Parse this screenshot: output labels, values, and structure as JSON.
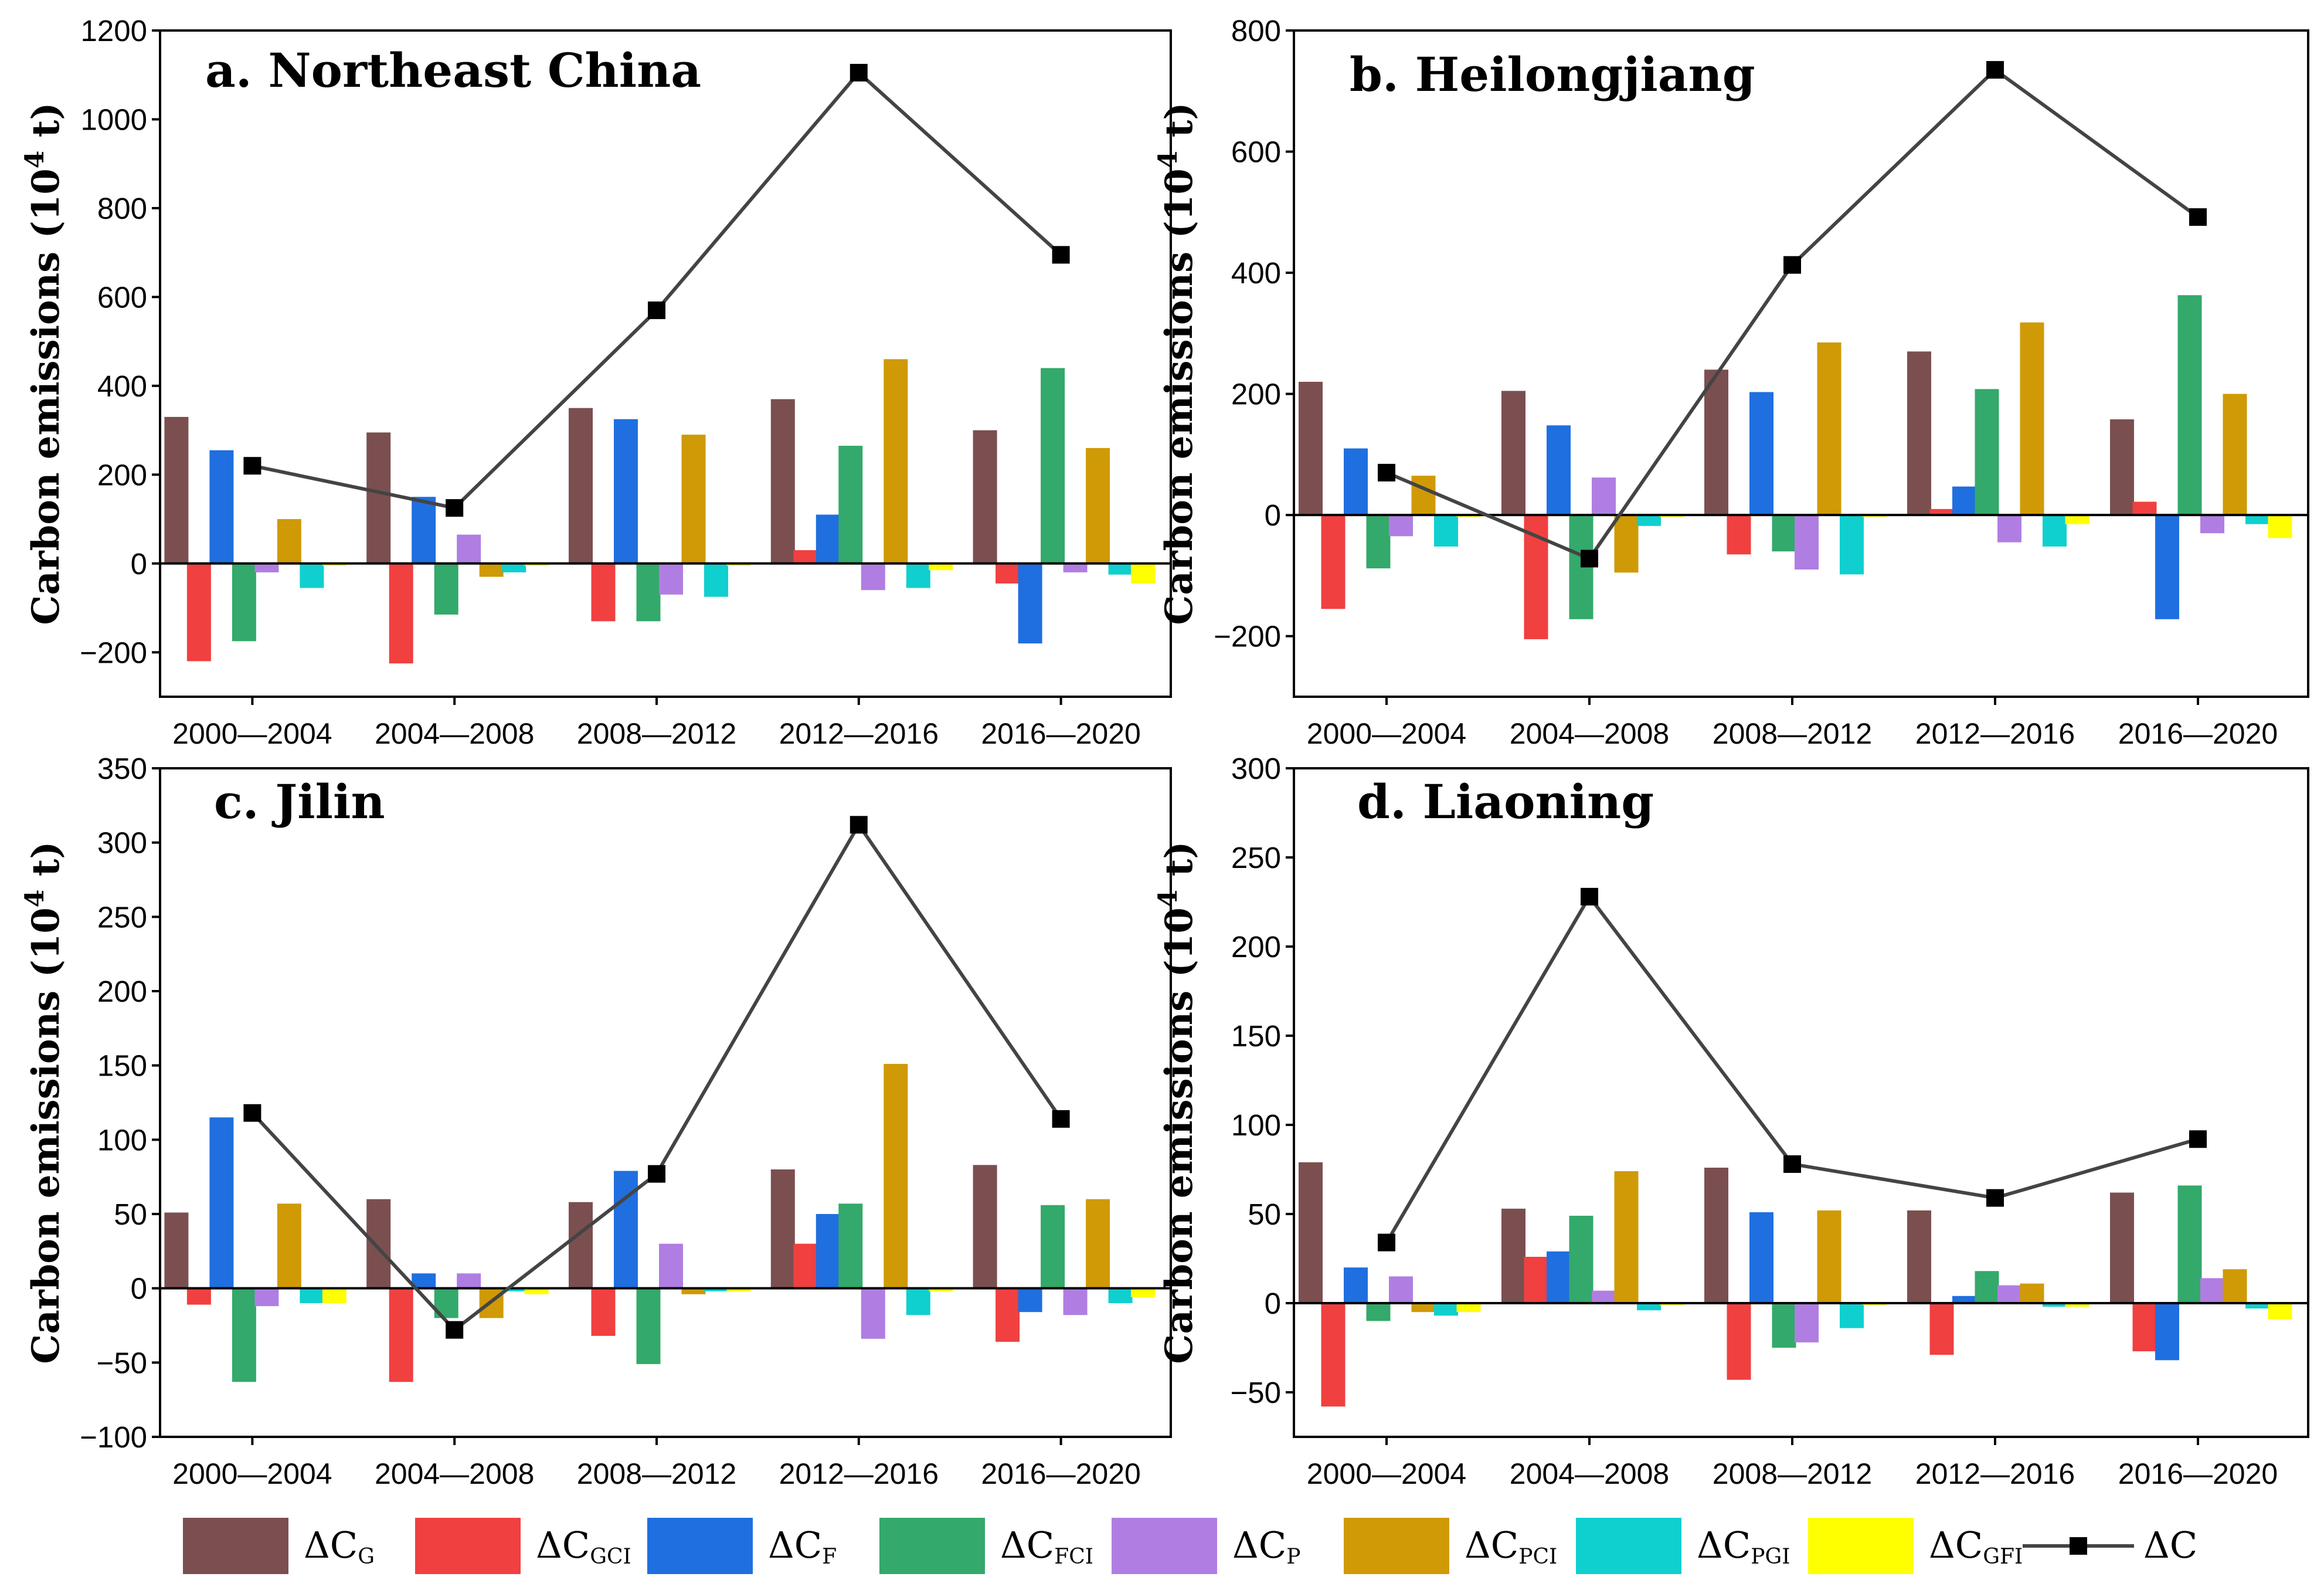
{
  "series_colors": {
    "dCG": "#7b4f4f",
    "dCGCI": "#f04040",
    "dCF": "#1f6fe0",
    "dCFCI": "#33a96b",
    "dCP": "#b07ee2",
    "dCPCI": "#cf9a05",
    "dCPGI": "#10cfcf",
    "dCGFI": "#ffff00",
    "dC": "#444444"
  },
  "legend": [
    {
      "key": "dCG",
      "main": "ΔC",
      "sub": "G"
    },
    {
      "key": "dCGCI",
      "main": "ΔC",
      "sub": "GCI"
    },
    {
      "key": "dCF",
      "main": "ΔC",
      "sub": "F"
    },
    {
      "key": "dCFCI",
      "main": "ΔC",
      "sub": "FCI"
    },
    {
      "key": "dCP",
      "main": "ΔC",
      "sub": "P"
    },
    {
      "key": "dCPCI",
      "main": "ΔC",
      "sub": "PCI"
    },
    {
      "key": "dCPGI",
      "main": "ΔC",
      "sub": "PGI"
    },
    {
      "key": "dCGFI",
      "main": "ΔC",
      "sub": "GFI"
    },
    {
      "key": "dC",
      "main": "ΔC",
      "sub": ""
    }
  ],
  "chart_data": [
    {
      "type": "bar",
      "title": "a. Northeast China",
      "ylabel_main": "Carbon emissions (10",
      "ylabel_sup": "4",
      "ylabel_end": " t)",
      "categories": [
        "2000—2004",
        "2004—2008",
        "2008—2012",
        "2012—2016",
        "2016—2020"
      ],
      "ylim": [
        -300,
        1200
      ],
      "yticks": [
        -200,
        0,
        200,
        400,
        600,
        800,
        1000,
        1200
      ],
      "series": [
        {
          "key": "dCG",
          "values": [
            330,
            295,
            350,
            370,
            300
          ]
        },
        {
          "key": "dCGCI",
          "values": [
            -220,
            -225,
            -130,
            30,
            -45
          ]
        },
        {
          "key": "dCF",
          "values": [
            255,
            150,
            325,
            110,
            -180
          ]
        },
        {
          "key": "dCFCI",
          "values": [
            -175,
            -115,
            -130,
            265,
            440
          ]
        },
        {
          "key": "dCP",
          "values": [
            -20,
            65,
            -70,
            -60,
            -20
          ]
        },
        {
          "key": "dCPCI",
          "values": [
            100,
            -30,
            290,
            460,
            260
          ]
        },
        {
          "key": "dCPGI",
          "values": [
            -55,
            -20,
            -75,
            -55,
            -25
          ]
        },
        {
          "key": "dCGFI",
          "values": [
            -5,
            -5,
            -5,
            -15,
            -45
          ]
        }
      ],
      "line": {
        "key": "dC",
        "values": [
          220,
          125,
          570,
          1105,
          695
        ]
      }
    },
    {
      "type": "bar",
      "title": "b. Heilongjiang",
      "ylabel_main": "Carbon emissions (10",
      "ylabel_sup": "4",
      "ylabel_end": " t)",
      "categories": [
        "2000—2004",
        "2004—2008",
        "2008—2012",
        "2012—2016",
        "2016—2020"
      ],
      "ylim": [
        -300,
        800
      ],
      "yticks": [
        -200,
        0,
        200,
        400,
        600,
        800
      ],
      "series": [
        {
          "key": "dCG",
          "values": [
            220,
            205,
            240,
            270,
            158
          ]
        },
        {
          "key": "dCGCI",
          "values": [
            -155,
            -205,
            -65,
            10,
            22
          ]
        },
        {
          "key": "dCF",
          "values": [
            110,
            148,
            203,
            47,
            -172
          ]
        },
        {
          "key": "dCFCI",
          "values": [
            -88,
            -172,
            -60,
            208,
            363
          ]
        },
        {
          "key": "dCP",
          "values": [
            -35,
            62,
            -90,
            -45,
            -30
          ]
        },
        {
          "key": "dCPCI",
          "values": [
            65,
            -95,
            285,
            318,
            200
          ]
        },
        {
          "key": "dCPGI",
          "values": [
            -52,
            -18,
            -98,
            -52,
            -15
          ]
        },
        {
          "key": "dCGFI",
          "values": [
            -3,
            -3,
            -3,
            -15,
            -38
          ]
        }
      ],
      "line": {
        "key": "dC",
        "values": [
          70,
          -72,
          413,
          735,
          492
        ]
      }
    },
    {
      "type": "bar",
      "title": "c. Jilin",
      "ylabel_main": "Carbon emissions (10",
      "ylabel_sup": "4",
      "ylabel_end": " t)",
      "categories": [
        "2000—2004",
        "2004—2008",
        "2008—2012",
        "2012—2016",
        "2016—2020"
      ],
      "ylim": [
        -100,
        350
      ],
      "yticks": [
        -100,
        -50,
        0,
        50,
        100,
        150,
        200,
        250,
        300,
        350
      ],
      "series": [
        {
          "key": "dCG",
          "values": [
            51,
            60,
            58,
            80,
            83
          ]
        },
        {
          "key": "dCGCI",
          "values": [
            -11,
            -63,
            -32,
            30,
            -36
          ]
        },
        {
          "key": "dCF",
          "values": [
            115,
            10,
            79,
            50,
            -16
          ]
        },
        {
          "key": "dCFCI",
          "values": [
            -63,
            -20,
            -51,
            57,
            56
          ]
        },
        {
          "key": "dCP",
          "values": [
            -12,
            10,
            30,
            -34,
            -18
          ]
        },
        {
          "key": "dCPCI",
          "values": [
            57,
            -20,
            -4,
            151,
            60
          ]
        },
        {
          "key": "dCPGI",
          "values": [
            -10,
            -2,
            -2,
            -18,
            -10
          ]
        },
        {
          "key": "dCGFI",
          "values": [
            -10,
            -4,
            -2,
            -2,
            -6
          ]
        }
      ],
      "line": {
        "key": "dC",
        "values": [
          118,
          -28,
          77,
          312,
          114
        ]
      }
    },
    {
      "type": "bar",
      "title": "d. Liaoning",
      "ylabel_main": "Carbon emissions (10",
      "ylabel_sup": "4",
      "ylabel_end": " t)",
      "categories": [
        "2000—2004",
        "2004—2008",
        "2008—2012",
        "2012—2016",
        "2016—2020"
      ],
      "ylim": [
        -75,
        300
      ],
      "yticks": [
        -50,
        0,
        50,
        100,
        150,
        200,
        250,
        300
      ],
      "series": [
        {
          "key": "dCG",
          "values": [
            79,
            53,
            76,
            52,
            62
          ]
        },
        {
          "key": "dCGCI",
          "values": [
            -58,
            26,
            -43,
            -29,
            -27
          ]
        },
        {
          "key": "dCF",
          "values": [
            20,
            29,
            51,
            4,
            -32
          ]
        },
        {
          "key": "dCFCI",
          "values": [
            -10,
            49,
            -25,
            18,
            66
          ]
        },
        {
          "key": "dCP",
          "values": [
            15,
            7,
            -22,
            10,
            14
          ]
        },
        {
          "key": "dCPCI",
          "values": [
            -5,
            74,
            52,
            11,
            19
          ]
        },
        {
          "key": "dCPGI",
          "values": [
            -7,
            -4,
            -14,
            -2,
            -3
          ]
        },
        {
          "key": "dCGFI",
          "values": [
            -5,
            -1,
            -1,
            -2,
            -9
          ]
        }
      ],
      "line": {
        "key": "dC",
        "values": [
          34,
          228,
          78,
          59,
          92
        ]
      }
    }
  ]
}
